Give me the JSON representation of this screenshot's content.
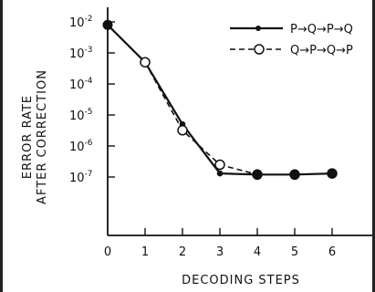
{
  "chart_data": {
    "type": "line",
    "title": "",
    "xlabel": "DECODING STEPS",
    "ylabel_lines": [
      "ERROR RATE",
      "AFTER CORRECTION"
    ],
    "x": [
      0,
      1,
      2,
      3,
      4,
      5,
      6
    ],
    "xlim": [
      0,
      7
    ],
    "ylim": [
      1e-08,
      0.01
    ],
    "yscale": "log",
    "yticks": [
      {
        "base": "10",
        "exp": "-2",
        "value": 0.01
      },
      {
        "base": "10",
        "exp": "-3",
        "value": 0.001
      },
      {
        "base": "10",
        "exp": "-4",
        "value": 0.0001
      },
      {
        "base": "10",
        "exp": "-5",
        "value": 1e-05
      },
      {
        "base": "10",
        "exp": "-6",
        "value": 1e-06
      },
      {
        "base": "10",
        "exp": "-7",
        "value": 1e-07
      }
    ],
    "xticks": [
      "0",
      "1",
      "2",
      "3",
      "4",
      "5",
      "6"
    ],
    "legend_position": "top-right",
    "grid": false,
    "series": [
      {
        "name": "P→Q→P→Q",
        "style": "solid",
        "marker": "filled",
        "x": [
          0,
          1,
          2,
          3,
          4,
          5,
          6
        ],
        "y": [
          0.008,
          0.0005,
          5e-06,
          1.3e-07,
          1.2e-07,
          1.2e-07,
          1.3e-07
        ]
      },
      {
        "name": "Q→P→Q→P",
        "style": "dashed",
        "marker": "open",
        "x": [
          1,
          2,
          3,
          4,
          5,
          6
        ],
        "y": [
          0.0005,
          3.2e-06,
          2.5e-07,
          1.2e-07,
          1.2e-07,
          1.3e-07
        ]
      }
    ]
  }
}
